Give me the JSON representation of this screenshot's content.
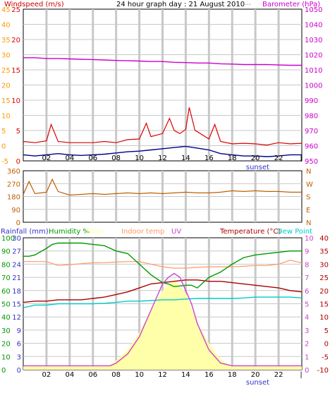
{
  "header": {
    "left_title": "Windspeed (m/s)",
    "center_title": "24 hour graph day : 21 August 2010",
    "center_suffix": "---",
    "right_title": "Barometer (hPa)"
  },
  "colors": {
    "gridline": "#c8c8c8",
    "frame": "#000000",
    "barometer": "#cc00cc",
    "windspeed": "#dd0000",
    "windgust_avg": "#00008b",
    "wind_direction": "#c06000",
    "humidity": "#009900",
    "indoor_temp": "#ff9966",
    "temperature": "#aa0000",
    "dew_point": "#00cccc",
    "uv": "#cc44cc",
    "solar_fill": "#ffffaa",
    "rainfall": "#6666ff",
    "title_red": "#cc0000",
    "label_orange": "#ff9900",
    "label_magenta": "#cc00cc",
    "label_green": "#009900",
    "label_blue": "#3333cc"
  },
  "chart_data": [
    {
      "type": "line",
      "panel": "wind_barometer",
      "x_ticks": [
        "02",
        "04",
        "06",
        "08",
        "10",
        "12",
        "14",
        "16",
        "18",
        "20",
        "22"
      ],
      "x_range_hours": [
        0,
        24
      ],
      "sunset_label": "sunset",
      "sunset_hour": 20.2,
      "left_axis_windspeed": {
        "ticks": [
          "25",
          "20",
          "15",
          "10",
          "5",
          "0"
        ],
        "ylim": [
          0,
          25
        ]
      },
      "left_axis_inner": {
        "ticks": [
          "45",
          "40",
          "35",
          "30",
          "25",
          "20",
          "15",
          "10",
          "5",
          "0",
          "-5"
        ],
        "range": [
          -5,
          45
        ]
      },
      "right_axis_barometer": {
        "ticks": [
          "1050",
          "1040",
          "1030",
          "1020",
          "1010",
          "1000",
          "990",
          "980",
          "970",
          "960",
          "950"
        ],
        "ylim": [
          950,
          1050
        ]
      },
      "series": [
        {
          "name": "Barometer",
          "axis": "right",
          "x": [
            0,
            1,
            2,
            3,
            4,
            5,
            6,
            7,
            8,
            9,
            10,
            11,
            12,
            13,
            14,
            15,
            16,
            17,
            18,
            19,
            20,
            21,
            22,
            23,
            24
          ],
          "values": [
            1018.0,
            1018.0,
            1017.5,
            1017.5,
            1017.2,
            1017.0,
            1016.8,
            1016.5,
            1016.2,
            1016.0,
            1015.8,
            1015.5,
            1015.5,
            1015.0,
            1014.8,
            1014.5,
            1014.5,
            1014.0,
            1013.8,
            1013.5,
            1013.5,
            1013.5,
            1013.2,
            1013.0,
            1013.0
          ]
        },
        {
          "name": "Windspeed",
          "axis": "left",
          "x": [
            0,
            1,
            2,
            2.4,
            3,
            4,
            5,
            6,
            7,
            8,
            9,
            10,
            10.6,
            11,
            12,
            12.6,
            13,
            13.5,
            14,
            14.3,
            14.8,
            15,
            16,
            16.5,
            17,
            18,
            19,
            20,
            21,
            22,
            23,
            24
          ],
          "values": [
            3.2,
            3.0,
            3.3,
            6.0,
            3.2,
            3.0,
            3.0,
            3.0,
            3.2,
            3.0,
            3.5,
            3.6,
            6.2,
            4.0,
            4.5,
            7.0,
            5.0,
            4.5,
            5.2,
            8.8,
            5.0,
            4.8,
            3.6,
            6.0,
            3.2,
            2.8,
            2.9,
            2.8,
            2.6,
            3.0,
            2.8,
            2.9
          ]
        },
        {
          "name": "Wind average",
          "axis": "left",
          "x": [
            0,
            1,
            2,
            3,
            4,
            5,
            6,
            7,
            8,
            9,
            10,
            11,
            12,
            13,
            14,
            15,
            16,
            17,
            18,
            19,
            20,
            21,
            22,
            23,
            24
          ],
          "values": [
            1.0,
            0.8,
            1.0,
            1.2,
            1.0,
            0.9,
            1.0,
            1.1,
            1.3,
            1.5,
            1.6,
            1.8,
            2.0,
            2.2,
            2.4,
            2.1,
            1.8,
            1.2,
            1.0,
            0.8,
            0.8,
            0.7,
            0.8,
            1.0,
            1.0
          ]
        }
      ]
    },
    {
      "type": "line",
      "panel": "wind_direction",
      "left_axis": {
        "ticks": [
          "360",
          "270",
          "180",
          "90",
          "0"
        ],
        "ylim": [
          0,
          360
        ]
      },
      "right_axis_compass": [
        "N",
        "W",
        "S",
        "E",
        "N"
      ],
      "series": [
        {
          "name": "Wind direction",
          "x": [
            0,
            0.5,
            1,
            2,
            2.5,
            3,
            4,
            5,
            6,
            7,
            8,
            9,
            10,
            11,
            12,
            13,
            14,
            15,
            16,
            17,
            18,
            19,
            20,
            21,
            22,
            23,
            24
          ],
          "values": [
            195,
            285,
            200,
            210,
            300,
            215,
            190,
            195,
            200,
            195,
            200,
            205,
            200,
            205,
            200,
            205,
            210,
            205,
            205,
            210,
            220,
            215,
            220,
            215,
            215,
            210,
            210
          ]
        }
      ]
    },
    {
      "type": "line",
      "panel": "temperature_humidity",
      "legend": [
        "Rainfall (mm)",
        "Humidity %",
        "Solar",
        "Indoor temp",
        "UV",
        "Temperature (°C)",
        "Dew Point"
      ],
      "x_ticks": [
        "02",
        "04",
        "06",
        "08",
        "10",
        "12",
        "14",
        "16",
        "18",
        "20",
        "22"
      ],
      "sunset_label": "sunset",
      "left_axis_humidity": {
        "ticks": [
          "100",
          "90",
          "80",
          "70",
          "60",
          "50",
          "40",
          "30",
          "20",
          "10",
          "0"
        ],
        "ylim": [
          0,
          100
        ]
      },
      "left_axis_rainfall": {
        "ticks": [
          "30",
          "27",
          "24",
          "21",
          "18",
          "15",
          "12",
          "9",
          "6",
          "3",
          "0"
        ],
        "ylim": [
          0,
          30
        ]
      },
      "right_axis_temperature": {
        "ticks": [
          "40",
          "35",
          "30",
          "25",
          "20",
          "15",
          "10",
          "5",
          "0",
          "-5",
          "-10"
        ],
        "ylim": [
          -10,
          40
        ]
      },
      "right_axis_uv": {
        "ticks": [
          "10",
          "9",
          "8",
          "7",
          "6",
          "5",
          "4",
          "3",
          "2",
          "1",
          "0"
        ],
        "ylim": [
          0,
          10
        ]
      },
      "series": [
        {
          "name": "Humidity %",
          "axis": "humidity",
          "x": [
            0,
            0.5,
            1,
            2,
            2.5,
            3,
            4,
            5,
            6,
            7,
            7.5,
            8,
            9,
            10,
            10.5,
            11,
            12,
            12.5,
            13,
            14,
            14.5,
            15,
            16,
            17,
            18,
            19,
            20,
            21,
            22,
            23,
            24
          ],
          "values": [
            86,
            86,
            87,
            92,
            95,
            96,
            96,
            96,
            95,
            94,
            92,
            90,
            88,
            80,
            76,
            72,
            66,
            65,
            63,
            64,
            64,
            62,
            70,
            74,
            80,
            85,
            87,
            88,
            89,
            90,
            90
          ]
        },
        {
          "name": "Indoor temp",
          "axis": "temperature",
          "x": [
            0,
            1,
            2,
            3,
            4,
            5,
            6,
            7,
            8,
            9,
            10,
            11,
            12,
            13,
            14,
            15,
            16,
            17,
            18,
            19,
            20,
            21,
            22,
            23,
            24
          ],
          "values": [
            31.0,
            31.0,
            31.0,
            29.5,
            29.8,
            30.2,
            30.5,
            30.6,
            30.8,
            31.0,
            31.0,
            30.0,
            29.0,
            28.5,
            28.5,
            28.8,
            29.0,
            29.0,
            29.0,
            29.2,
            29.5,
            29.5,
            30.0,
            31.5,
            30.5
          ]
        },
        {
          "name": "Temperature (°C)",
          "axis": "temperature",
          "x": [
            0,
            1,
            2,
            3,
            4,
            5,
            6,
            7,
            8,
            9,
            10,
            11,
            12,
            13,
            14,
            15,
            16,
            17,
            18,
            19,
            20,
            21,
            22,
            23,
            24
          ],
          "values": [
            15.5,
            16.0,
            16.0,
            16.5,
            16.5,
            16.5,
            17.0,
            17.5,
            18.5,
            19.5,
            21.0,
            22.5,
            23.0,
            23.5,
            24.0,
            24.0,
            23.5,
            23.5,
            23.0,
            22.5,
            22.0,
            21.5,
            21.0,
            20.0,
            19.5
          ]
        },
        {
          "name": "Dew Point",
          "axis": "temperature",
          "x": [
            0,
            1,
            2,
            3,
            4,
            5,
            6,
            7,
            8,
            9,
            10,
            11,
            12,
            13,
            14,
            15,
            16,
            17,
            18,
            19,
            20,
            21,
            22,
            23,
            24
          ],
          "values": [
            13.5,
            14.5,
            14.5,
            15.0,
            15.0,
            15.0,
            15.0,
            15.2,
            15.5,
            16.0,
            16.0,
            16.2,
            16.5,
            16.5,
            16.8,
            17.0,
            17.0,
            17.0,
            17.0,
            17.2,
            17.5,
            17.5,
            17.5,
            17.5,
            17.2
          ]
        },
        {
          "name": "UV",
          "axis": "uv",
          "x": [
            0,
            7,
            7.5,
            8,
            9,
            10,
            11,
            11.5,
            12,
            12.5,
            13,
            13.5,
            14,
            14.5,
            15,
            15.5,
            16,
            17,
            18,
            19,
            24
          ],
          "values": [
            0.3,
            0.3,
            0.3,
            0.5,
            1.2,
            2.5,
            4.5,
            5.5,
            6.5,
            7.0,
            7.3,
            7.0,
            6.0,
            5.0,
            3.5,
            2.5,
            1.5,
            0.5,
            0.3,
            0.3,
            0.3
          ]
        },
        {
          "name": "Solar",
          "axis": "uv",
          "x": [
            0,
            7,
            8,
            9,
            10,
            11,
            12,
            13,
            14,
            15,
            16,
            17,
            18,
            24
          ],
          "values": [
            0.1,
            0.1,
            0.7,
            1.5,
            2.8,
            4.5,
            6.0,
            6.8,
            5.8,
            3.5,
            2.0,
            0.8,
            0.2,
            0.1
          ]
        },
        {
          "name": "Rainfall (mm)",
          "axis": "rainfall",
          "x": [
            0,
            24
          ],
          "values": [
            0.5,
            0.5
          ]
        }
      ]
    }
  ]
}
